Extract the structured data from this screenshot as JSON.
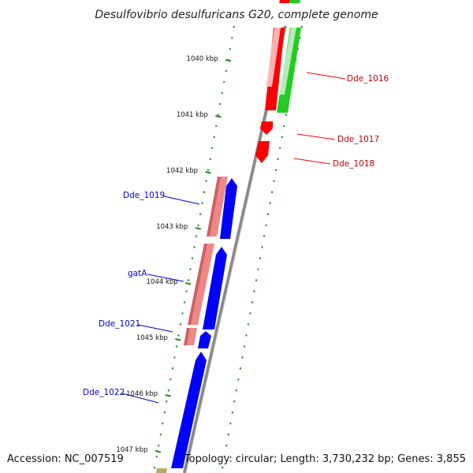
{
  "title": "Desulfovibrio desulfuricans G20, complete genome",
  "footer": {
    "accession": "Accession: NC_007519",
    "topology": "Topology: circular; Length: 3,730,232 bp; Genes: 3,855"
  },
  "colors": {
    "forward_gene": "#ff0000",
    "reverse_gene": "#0000ff",
    "forward_cds": "#22cc22",
    "reverse_cds": "#ee8888",
    "backbone": "#888888",
    "tick_marks": "#228b22",
    "upstream_feature": "#bba866"
  },
  "scale_labels": [
    "1040 kbp",
    "1041 kbp",
    "1042 kbp",
    "1043 kbp",
    "1044 kbp",
    "1045 kbp",
    "1046 kbp",
    "1047 kbp"
  ],
  "genes": [
    {
      "name": "Dde_1016",
      "strand": "forward"
    },
    {
      "name": "Dde_1017",
      "strand": "forward"
    },
    {
      "name": "Dde_1018",
      "strand": "forward"
    },
    {
      "name": "Dde_1019",
      "strand": "reverse"
    },
    {
      "name": "gatA",
      "strand": "reverse"
    },
    {
      "name": "Dde_1021",
      "strand": "reverse"
    },
    {
      "name": "Dde_1022",
      "strand": "reverse"
    }
  ]
}
